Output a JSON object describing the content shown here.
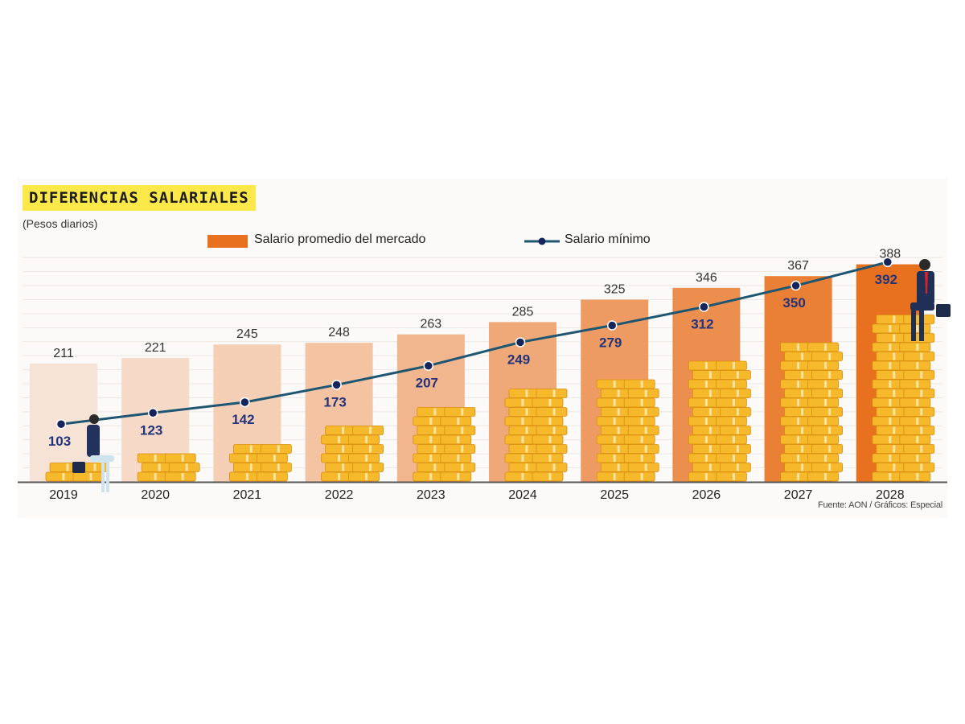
{
  "header": {
    "title": "DIFERENCIAS SALARIALES",
    "subtitle": "(Pesos diarios)"
  },
  "legend": {
    "bar_label": "Salario promedio del mercado",
    "line_label": "Salario mínimo"
  },
  "footer": {
    "source": "Fuente: AON /  Gráficos: Especial"
  },
  "colors": {
    "bar_light": "#f7e3d6",
    "bar_dark": "#e8711f",
    "line": "#1e5672",
    "point": "#15245a",
    "line_label": "#25347a",
    "bar_label": "#333333",
    "coin": "#f6b92b",
    "coin_edge": "#d98e10",
    "title_highlight": "#fde84a"
  },
  "chart_data": {
    "type": "bar",
    "title": "DIFERENCIAS SALARIALES",
    "ylabel": "(Pesos diarios)",
    "categories": [
      "2019",
      "2020",
      "2021",
      "2022",
      "2023",
      "2024",
      "2025",
      "2026",
      "2027",
      "2028"
    ],
    "ylim": [
      0,
      400
    ],
    "grid": true,
    "legend_position": "top",
    "series": [
      {
        "name": "Salario promedio del mercado",
        "type": "bar",
        "values": [
          211,
          221,
          245,
          248,
          263,
          285,
          325,
          346,
          367,
          388
        ]
      },
      {
        "name": "Salario mínimo",
        "type": "line",
        "values": [
          103,
          123,
          142,
          173,
          207,
          249,
          279,
          312,
          350,
          392
        ]
      }
    ]
  }
}
